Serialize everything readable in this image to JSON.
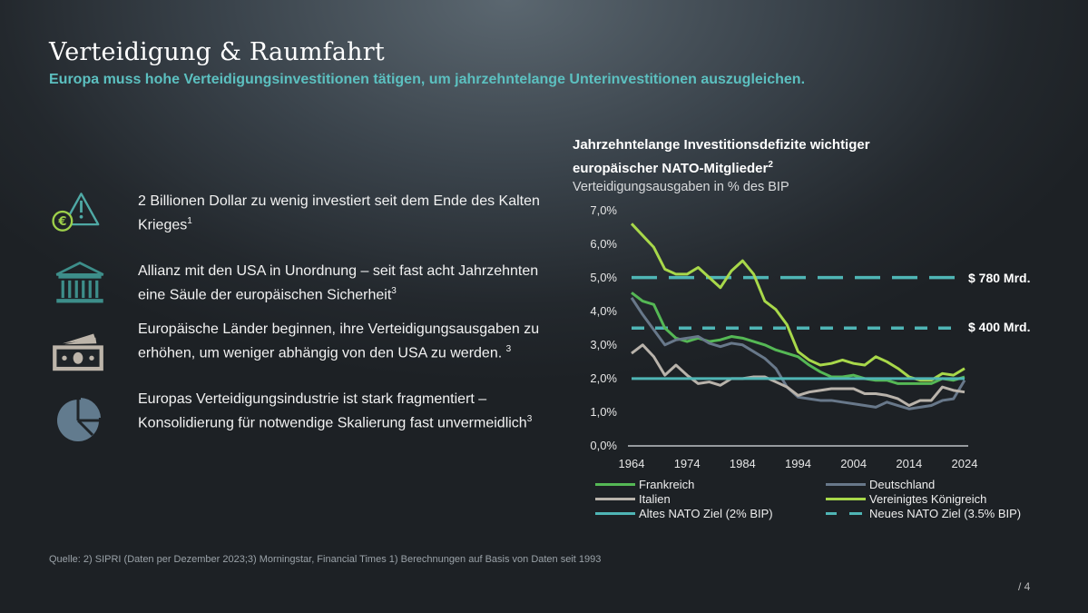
{
  "header": {
    "title": "Verteidigung & Raumfahrt",
    "subtitle": "Europa muss hohe Verteidigungsinvestitionen tätigen, um jahrzehntelange Unterinvestitionen auszugleichen."
  },
  "bullets": [
    {
      "icon": "euro-warning-icon",
      "text": "2 Billionen Dollar zu wenig investiert seit dem Ende des Kalten Krieges",
      "sup": "1"
    },
    {
      "icon": "bank-icon",
      "text": "Allianz mit den USA in Unordnung – seit fast acht Jahrzehnten eine Säule der europäischen Sicherheit",
      "sup": "3"
    },
    {
      "icon": "money-icon",
      "text": "Europäische Länder beginnen, ihre Verteidigungsausgaben zu erhöhen, um weniger abhängig von den USA zu werden. ",
      "sup": "3"
    },
    {
      "icon": "pie-chart-icon",
      "text": "Europas Verteidigungsindustrie ist stark fragmentiert – Konsolidierung für notwendige Skalierung fast unvermeidlich",
      "sup": "3"
    }
  ],
  "chart_data": {
    "type": "line",
    "title": "Jahrzehntelange Investitionsdefizite wichtiger europäischer NATO-Mitglieder",
    "title_sup": "2",
    "ylabel": "Verteidigungsausgaben in % des BIP",
    "ylim": [
      0,
      7
    ],
    "yticks": [
      "0,0%",
      "1,0%",
      "2,0%",
      "3,0%",
      "4,0%",
      "5,0%",
      "6,0%",
      "7,0%"
    ],
    "xticks": [
      "1964",
      "1974",
      "1984",
      "1994",
      "2004",
      "2014",
      "2024"
    ],
    "x": [
      1964,
      1966,
      1968,
      1970,
      1972,
      1974,
      1976,
      1978,
      1980,
      1982,
      1984,
      1986,
      1988,
      1990,
      1992,
      1994,
      1996,
      1998,
      2000,
      2002,
      2004,
      2006,
      2008,
      2010,
      2012,
      2014,
      2016,
      2018,
      2020,
      2022,
      2024
    ],
    "series": [
      {
        "name": "Frankreich",
        "color": "#55b855",
        "values": [
          4.55,
          4.3,
          4.2,
          3.5,
          3.2,
          3.1,
          3.2,
          3.1,
          3.15,
          3.25,
          3.2,
          3.1,
          3.0,
          2.85,
          2.75,
          2.65,
          2.4,
          2.2,
          2.05,
          2.05,
          2.1,
          2.0,
          1.95,
          1.95,
          1.85,
          1.85,
          1.85,
          1.85,
          2.0,
          1.95,
          2.05
        ]
      },
      {
        "name": "Deutschland",
        "color": "#68788a",
        "values": [
          4.4,
          3.9,
          3.45,
          3.0,
          3.15,
          3.2,
          3.25,
          3.05,
          2.95,
          3.05,
          3.0,
          2.8,
          2.6,
          2.3,
          1.75,
          1.45,
          1.4,
          1.35,
          1.35,
          1.3,
          1.25,
          1.2,
          1.15,
          1.3,
          1.2,
          1.1,
          1.15,
          1.2,
          1.35,
          1.4,
          1.95
        ]
      },
      {
        "name": "Italien",
        "color": "#b9b3ab",
        "values": [
          2.75,
          3.0,
          2.65,
          2.1,
          2.4,
          2.1,
          1.85,
          1.9,
          1.8,
          2.0,
          2.0,
          2.05,
          2.05,
          1.9,
          1.75,
          1.5,
          1.6,
          1.65,
          1.7,
          1.7,
          1.7,
          1.55,
          1.55,
          1.5,
          1.4,
          1.2,
          1.35,
          1.35,
          1.75,
          1.65,
          1.6
        ]
      },
      {
        "name": "Vereinigtes Königreich",
        "color": "#a8d84a",
        "values": [
          6.6,
          6.25,
          5.9,
          5.25,
          5.1,
          5.1,
          5.3,
          5.0,
          4.7,
          5.2,
          5.5,
          5.1,
          4.3,
          4.05,
          3.6,
          2.8,
          2.55,
          2.4,
          2.45,
          2.55,
          2.45,
          2.4,
          2.65,
          2.5,
          2.3,
          2.05,
          1.95,
          1.95,
          2.15,
          2.1,
          2.3
        ]
      }
    ],
    "reference_lines": [
      {
        "name": "Altes NATO Ziel (2% BIP)",
        "value": 2.0,
        "style": "solid",
        "color": "#4fb5b5"
      },
      {
        "name": "Neues NATO Ziel (3.5% BIP)",
        "value": 3.5,
        "style": "dashed",
        "color": "#4fb5b5",
        "label": "$ 400 Mrd."
      },
      {
        "name": "",
        "value": 5.0,
        "style": "dashed",
        "color": "#4fb5b5",
        "label": "$ 780 Mrd."
      }
    ],
    "legend": [
      "Frankreich",
      "Deutschland",
      "Italien",
      "Vereinigtes Königreich",
      "Altes NATO Ziel (2% BIP)",
      "Neues NATO Ziel (3.5% BIP)"
    ]
  },
  "footer": {
    "source": "Quelle: 2) SIPRI (Daten per Dezember 2023;3) Morningstar, Financial Times 1) Berechnungen auf Basis von Daten seit 1993",
    "page": "/  4"
  }
}
